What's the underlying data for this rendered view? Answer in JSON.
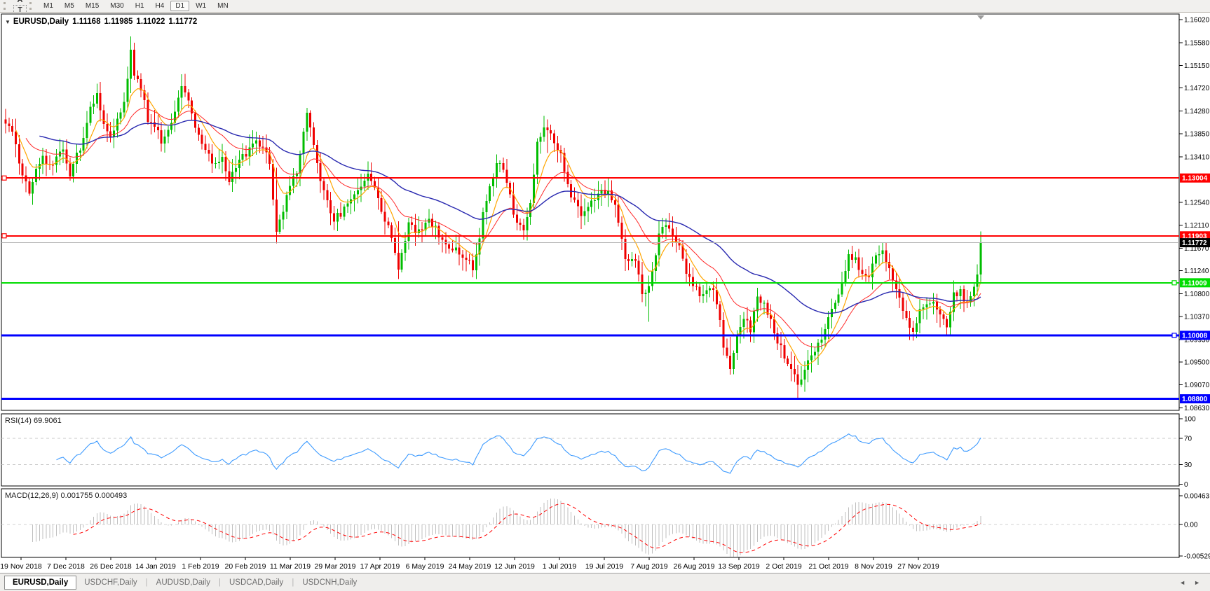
{
  "toolbar": {
    "tools": [
      {
        "name": "fibonacci-tool",
        "glyph": "F"
      },
      {
        "name": "text-label-tool",
        "glyph": "A"
      },
      {
        "name": "text-tool",
        "glyph": "T"
      },
      {
        "name": "arrow-style-tool",
        "glyph": "✥",
        "caret": "▾"
      }
    ],
    "timeframes": [
      "M1",
      "M5",
      "M15",
      "M30",
      "H1",
      "H4",
      "D1",
      "W1",
      "MN"
    ],
    "active_timeframe": "D1"
  },
  "chart": {
    "dropdown_glyph": "▼",
    "symbol": "EURUSD,Daily",
    "open": "1.11168",
    "high": "1.11985",
    "low": "1.11022",
    "close": "1.11772",
    "price_ticks": [
      "1.16020",
      "1.15580",
      "1.15150",
      "1.14720",
      "1.14280",
      "1.13850",
      "1.13410",
      "1.12540",
      "1.12110",
      "1.11670",
      "1.11240",
      "1.10800",
      "1.10370",
      "1.09930",
      "1.09500",
      "1.09070",
      "1.08630"
    ],
    "hlines": [
      {
        "price": 1.13004,
        "label": "1.13004",
        "color": "#ff0000",
        "width": 2,
        "marker": "left"
      },
      {
        "price": 1.11903,
        "label": "1.11903",
        "color": "#ff0000",
        "width": 2,
        "marker": "left"
      },
      {
        "price": 1.11772,
        "label": "1.11772",
        "color": "#b4b4b4",
        "width": 1,
        "label_bg": "#000000",
        "bid_line": true
      },
      {
        "price": 1.11009,
        "label": "1.11009",
        "color": "#00dd00",
        "width": 2,
        "marker": "right"
      },
      {
        "price": 1.10008,
        "label": "1.10008",
        "color": "#0000ff",
        "width": 3,
        "marker": "right"
      },
      {
        "price": 1.088,
        "label": "1.08800",
        "color": "#0000ff",
        "width": 3
      }
    ],
    "dates": [
      "19 Nov 2018",
      "7 Dec 2018",
      "26 Dec 2018",
      "14 Jan 2019",
      "1 Feb 2019",
      "20 Feb 2019",
      "11 Mar 2019",
      "29 Mar 2019",
      "17 Apr 2019",
      "6 May 2019",
      "24 May 2019",
      "12 Jun 2019",
      "1 Jul 2019",
      "19 Jul 2019",
      "7 Aug 2019",
      "26 Aug 2019",
      "13 Sep 2019",
      "2 Oct 2019",
      "21 Oct 2019",
      "8 Nov 2019",
      "27 Nov 2019"
    ],
    "bars_total": 289,
    "anchors": [
      [
        0,
        1.141
      ],
      [
        2,
        1.1385
      ],
      [
        4,
        1.133
      ],
      [
        6,
        1.129
      ],
      [
        7,
        1.1272
      ],
      [
        9,
        1.1315
      ],
      [
        11,
        1.1345
      ],
      [
        13,
        1.1318
      ],
      [
        15,
        1.1338
      ],
      [
        17,
        1.1362
      ],
      [
        19,
        1.1305
      ],
      [
        21,
        1.1345
      ],
      [
        23,
        1.1375
      ],
      [
        25,
        1.1432
      ],
      [
        27,
        1.1458
      ],
      [
        29,
        1.1398
      ],
      [
        31,
        1.1382
      ],
      [
        33,
        1.1412
      ],
      [
        35,
        1.1445
      ],
      [
        37,
        1.1542
      ],
      [
        38,
        1.1498
      ],
      [
        40,
        1.1472
      ],
      [
        42,
        1.1412
      ],
      [
        44,
        1.1398
      ],
      [
        46,
        1.1372
      ],
      [
        48,
        1.1392
      ],
      [
        50,
        1.1432
      ],
      [
        52,
        1.1478
      ],
      [
        54,
        1.1452
      ],
      [
        56,
        1.1402
      ],
      [
        58,
        1.1365
      ],
      [
        60,
        1.1342
      ],
      [
        62,
        1.1322
      ],
      [
        64,
        1.1338
      ],
      [
        66,
        1.1295
      ],
      [
        68,
        1.1322
      ],
      [
        70,
        1.1342
      ],
      [
        72,
        1.1355
      ],
      [
        74,
        1.1372
      ],
      [
        76,
        1.1352
      ],
      [
        78,
        1.1332
      ],
      [
        80,
        1.1195
      ],
      [
        82,
        1.1242
      ],
      [
        84,
        1.1282
      ],
      [
        86,
        1.1312
      ],
      [
        88,
        1.1392
      ],
      [
        89,
        1.1422
      ],
      [
        91,
        1.1362
      ],
      [
        93,
        1.1292
      ],
      [
        95,
        1.1252
      ],
      [
        97,
        1.1222
      ],
      [
        99,
        1.1232
      ],
      [
        101,
        1.1252
      ],
      [
        103,
        1.1272
      ],
      [
        105,
        1.1288
      ],
      [
        107,
        1.1302
      ],
      [
        109,
        1.1282
      ],
      [
        111,
        1.1242
      ],
      [
        113,
        1.1205
      ],
      [
        115,
        1.1162
      ],
      [
        116,
        1.1132
      ],
      [
        118,
        1.1185
      ],
      [
        119,
        1.1215
      ],
      [
        121,
        1.1198
      ],
      [
        123,
        1.1208
      ],
      [
        125,
        1.1218
      ],
      [
        127,
        1.1202
      ],
      [
        129,
        1.1185
      ],
      [
        131,
        1.1172
      ],
      [
        133,
        1.1162
      ],
      [
        135,
        1.1155
      ],
      [
        137,
        1.1142
      ],
      [
        138,
        1.1128
      ],
      [
        140,
        1.1185
      ],
      [
        141,
        1.1242
      ],
      [
        143,
        1.1285
      ],
      [
        145,
        1.1332
      ],
      [
        147,
        1.1318
      ],
      [
        149,
        1.1262
      ],
      [
        151,
        1.1212
      ],
      [
        153,
        1.1198
      ],
      [
        155,
        1.1248
      ],
      [
        157,
        1.1372
      ],
      [
        159,
        1.1392
      ],
      [
        160,
        1.1398
      ],
      [
        162,
        1.1372
      ],
      [
        164,
        1.1342
      ],
      [
        166,
        1.1288
      ],
      [
        168,
        1.1252
      ],
      [
        170,
        1.1228
      ],
      [
        172,
        1.1242
      ],
      [
        174,
        1.1258
      ],
      [
        176,
        1.1272
      ],
      [
        178,
        1.1275
      ],
      [
        180,
        1.1252
      ],
      [
        182,
        1.1182
      ],
      [
        183,
        1.1142
      ],
      [
        185,
        1.1152
      ],
      [
        187,
        1.1122
      ],
      [
        188,
        1.1078
      ],
      [
        190,
        1.1088
      ],
      [
        192,
        1.1152
      ],
      [
        193,
        1.1202
      ],
      [
        195,
        1.1208
      ],
      [
        197,
        1.1192
      ],
      [
        199,
        1.1172
      ],
      [
        201,
        1.1122
      ],
      [
        203,
        1.1092
      ],
      [
        205,
        1.1082
      ],
      [
        207,
        1.1088
      ],
      [
        209,
        1.1092
      ],
      [
        211,
        1.1032
      ],
      [
        212,
        1.0982
      ],
      [
        214,
        1.0938
      ],
      [
        216,
        1.1002
      ],
      [
        218,
        1.1038
      ],
      [
        220,
        1.1012
      ],
      [
        222,
        1.1072
      ],
      [
        224,
        1.1062
      ],
      [
        226,
        1.1032
      ],
      [
        228,
        1.0992
      ],
      [
        230,
        1.0962
      ],
      [
        232,
        1.0942
      ],
      [
        234,
        1.0902
      ],
      [
        236,
        1.0942
      ],
      [
        238,
        1.0968
      ],
      [
        240,
        1.0982
      ],
      [
        242,
        1.1012
      ],
      [
        244,
        1.1052
      ],
      [
        246,
        1.1078
      ],
      [
        248,
        1.1122
      ],
      [
        249,
        1.1152
      ],
      [
        251,
        1.1142
      ],
      [
        253,
        1.1122
      ],
      [
        255,
        1.1112
      ],
      [
        257,
        1.1152
      ],
      [
        259,
        1.1168
      ],
      [
        261,
        1.1122
      ],
      [
        263,
        1.1082
      ],
      [
        265,
        1.1052
      ],
      [
        267,
        1.1022
      ],
      [
        268,
        1.1005
      ],
      [
        270,
        1.1048
      ],
      [
        272,
        1.1062
      ],
      [
        274,
        1.1068
      ],
      [
        276,
        1.1042
      ],
      [
        278,
        1.1018
      ],
      [
        280,
        1.1078
      ],
      [
        282,
        1.1082
      ],
      [
        284,
        1.1062
      ],
      [
        286,
        1.1095
      ],
      [
        287,
        1.11168
      ],
      [
        288,
        1.11772
      ]
    ],
    "wick_overrides": {
      "37": [
        1.157,
        1.1462
      ],
      "80": [
        1.132,
        1.1176
      ],
      "116": [
        1.1218,
        1.1108
      ],
      "160": [
        1.1412,
        1.1348
      ],
      "190": [
        1.1115,
        1.1027
      ],
      "214": [
        1.0998,
        1.0926
      ],
      "234": [
        1.0945,
        1.0879
      ],
      "288": [
        1.11985,
        1.11022
      ]
    },
    "colors": {
      "up": "#00bd00",
      "down": "#ef0000",
      "ma_fast": "#ffa500",
      "ma_mid": "#ff2a2a",
      "ma_slow": "#2929b0",
      "bid_line": "#b4b4b4",
      "hist": "#bfbfbf",
      "signal": "#ff0000",
      "rsi": "#3e9bff"
    }
  },
  "rsi": {
    "label": "RSI(14) 69.9061",
    "period": 14,
    "value": "69.9061",
    "levels": [
      {
        "label": "100",
        "v": 100
      },
      {
        "label": "70",
        "v": 70
      },
      {
        "label": "30",
        "v": 30
      },
      {
        "label": "0",
        "v": 0
      }
    ],
    "dashed_levels": [
      70,
      30
    ]
  },
  "macd": {
    "label": "MACD(12,26,9) 0.001755 0.000493",
    "params": "12,26,9",
    "main_value": "0.001755",
    "signal_value": "0.000493",
    "ticks": [
      {
        "label": "0.00463",
        "v": 0.00463
      },
      {
        "label": "0.00",
        "v": 0
      },
      {
        "label": "-0.005299",
        "v": -0.005299
      }
    ]
  },
  "tabs": [
    {
      "label": "EURUSD,Daily",
      "active": true
    },
    {
      "label": "USDCHF,Daily",
      "active": false
    },
    {
      "label": "AUDUSD,Daily",
      "active": false
    },
    {
      "label": "USDCAD,Daily",
      "active": false
    },
    {
      "label": "USDCNH,Daily",
      "active": false
    }
  ],
  "tab_separator": "|",
  "tab_nav": {
    "prev": "◄",
    "next": "►"
  }
}
